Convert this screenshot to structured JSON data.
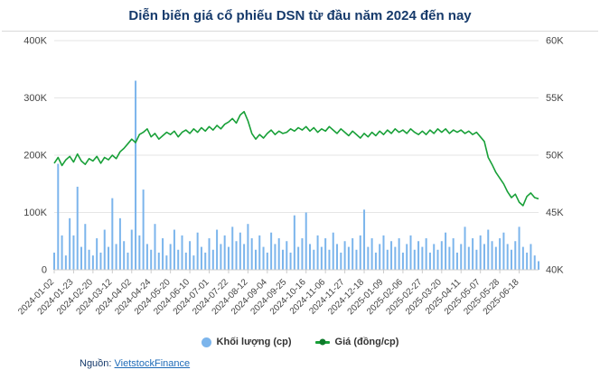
{
  "title": "Diễn biến giá cổ phiếu DSN từ đầu năm 2024 đến nay",
  "legend": [
    {
      "label": "Khối lượng (cp)",
      "marker": "circle-icon",
      "color": "#7cb5ec"
    },
    {
      "label": "Giá (đồng/cp)",
      "marker": "line-dot-icon",
      "color": "#18a038"
    }
  ],
  "source": {
    "prefix": "Nguồn:",
    "link_text": "VietstockFinance"
  },
  "colors": {
    "title": "#163a6b",
    "volume_bar": "#7cb5ec",
    "price_line": "#18a038",
    "grid": "#e6e6e6",
    "axis_text": "#444444"
  },
  "chart_data": {
    "type": "bar",
    "subtype": "combo-volume-price",
    "title": "Diễn biến giá cổ phiếu DSN từ đầu năm 2024 đến nay",
    "grid": true,
    "legend_position": "bottom",
    "x_tick_labels": [
      "2024-01-02",
      "2024-01-23",
      "2024-02-20",
      "2024-03-12",
      "2024-04-02",
      "2024-04-24",
      "2024-05-20",
      "2024-06-10",
      "2024-07-01",
      "2024-07-22",
      "2024-08-12",
      "2024-09-04",
      "2024-09-25",
      "2024-10-16",
      "2024-11-06",
      "2024-11-27",
      "2024-12-18",
      "2025-01-09",
      "2025-02-06",
      "2025-02-27",
      "2025-03-20",
      "2025-04-11",
      "2025-05-07",
      "2025-05-28",
      "2025-06-18"
    ],
    "tick_every": 5,
    "left_axis": {
      "label": "Khối lượng (cp)",
      "min": 0,
      "max": 400000,
      "tick_values": [
        0,
        100000,
        200000,
        300000,
        400000
      ],
      "ticks": [
        "0",
        "100K",
        "200K",
        "300K",
        "400K"
      ]
    },
    "right_axis": {
      "label": "Giá (đồng/cp)",
      "min": 40000,
      "max": 60000,
      "tick_values": [
        40000,
        45000,
        50000,
        55000,
        60000
      ],
      "ticks": [
        "40K",
        "45K",
        "50K",
        "55K",
        "60K"
      ]
    },
    "series": [
      {
        "name": "Khối lượng (cp)",
        "type": "bar",
        "axis": "left",
        "values": [
          30000,
          185000,
          60000,
          25000,
          90000,
          60000,
          145000,
          40000,
          80000,
          35000,
          25000,
          55000,
          30000,
          70000,
          40000,
          125000,
          45000,
          90000,
          50000,
          30000,
          70000,
          330000,
          60000,
          140000,
          45000,
          35000,
          80000,
          30000,
          55000,
          25000,
          45000,
          70000,
          35000,
          60000,
          30000,
          50000,
          25000,
          65000,
          40000,
          30000,
          55000,
          35000,
          70000,
          45000,
          60000,
          40000,
          75000,
          50000,
          65000,
          45000,
          80000,
          55000,
          35000,
          60000,
          40000,
          30000,
          65000,
          45000,
          55000,
          35000,
          50000,
          30000,
          95000,
          40000,
          55000,
          100000,
          45000,
          35000,
          60000,
          40000,
          55000,
          35000,
          65000,
          45000,
          30000,
          50000,
          40000,
          55000,
          35000,
          60000,
          105000,
          40000,
          55000,
          30000,
          45000,
          60000,
          35000,
          50000,
          40000,
          55000,
          30000,
          45000,
          60000,
          35000,
          50000,
          40000,
          55000,
          30000,
          45000,
          35000,
          50000,
          65000,
          40000,
          55000,
          30000,
          45000,
          75000,
          40000,
          55000,
          35000,
          60000,
          45000,
          70000,
          50000,
          40000,
          55000,
          65000,
          45000,
          35000,
          50000,
          75000,
          40000,
          30000,
          45000,
          25000,
          15000
        ]
      },
      {
        "name": "Giá (đồng/cp)",
        "type": "line",
        "axis": "right",
        "values": [
          49300,
          49800,
          49100,
          49600,
          49900,
          49400,
          50100,
          49500,
          49200,
          49700,
          49500,
          49900,
          49300,
          49800,
          49600,
          50000,
          49700,
          50300,
          50600,
          51000,
          51400,
          51100,
          51800,
          52000,
          52300,
          51600,
          51900,
          51400,
          51700,
          52000,
          51800,
          52100,
          51600,
          52000,
          52200,
          51900,
          52300,
          52000,
          52400,
          52100,
          52500,
          52200,
          52600,
          52300,
          52700,
          52900,
          53200,
          52800,
          53500,
          53800,
          53000,
          51900,
          51400,
          51800,
          51500,
          51900,
          52200,
          51800,
          52100,
          51900,
          52000,
          52300,
          52100,
          52400,
          52200,
          52500,
          52100,
          52400,
          52000,
          52300,
          52100,
          52500,
          52200,
          51900,
          52300,
          52000,
          51700,
          52100,
          51800,
          51500,
          51900,
          51600,
          52000,
          51700,
          52100,
          51800,
          52200,
          51900,
          52300,
          52000,
          52200,
          51900,
          52300,
          52000,
          51800,
          52100,
          51800,
          52200,
          51900,
          52300,
          52000,
          52300,
          51900,
          52200,
          52000,
          52200,
          51900,
          52100,
          51800,
          52000,
          51600,
          51200,
          49800,
          49200,
          48500,
          48000,
          47500,
          46800,
          46300,
          46600,
          45900,
          45600,
          46400,
          46700,
          46300,
          46200
        ]
      }
    ]
  }
}
